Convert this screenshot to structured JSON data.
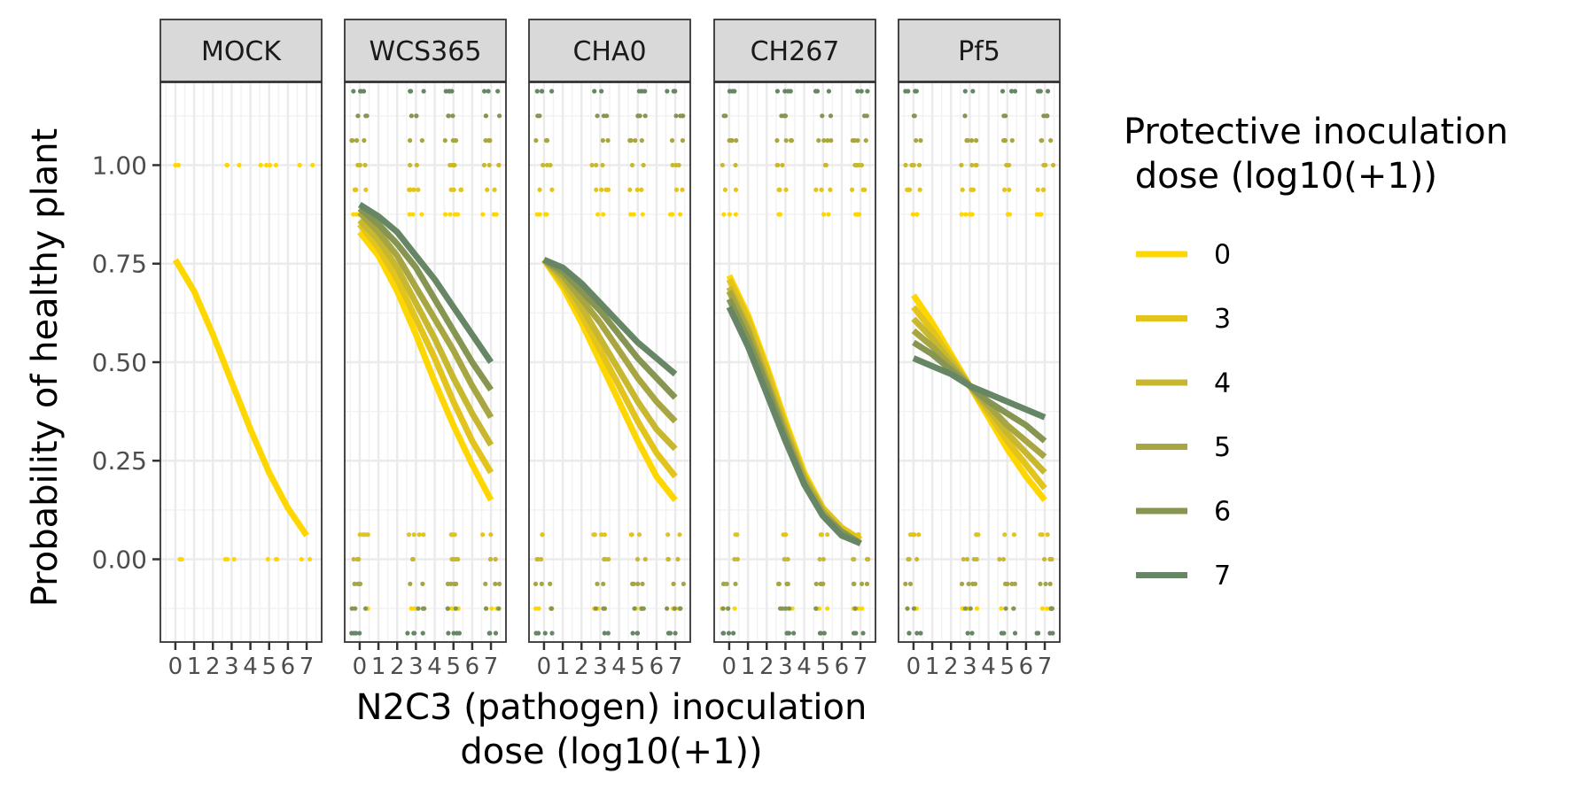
{
  "chart_data": {
    "type": "line",
    "facets": [
      "MOCK",
      "WCS365",
      "CHA0",
      "CH267",
      "Pf5"
    ],
    "xlabel": "N2C3 (pathogen) inoculation\ndose (log10(+1))",
    "ylabel": "Probability of healthy plant",
    "xlim": [
      -0.8,
      7.8
    ],
    "ylim": [
      -0.21,
      1.21
    ],
    "x_ticks": [
      0,
      1,
      2,
      3,
      4,
      5,
      6,
      7
    ],
    "x_tick_labels": [
      "0",
      "1",
      "2",
      "3",
      "4",
      "5",
      "6",
      "7"
    ],
    "y_ticks": [
      0,
      0.25,
      0.5,
      0.75,
      1
    ],
    "y_tick_labels": [
      "0.00",
      "0.25",
      "0.50",
      "0.75",
      "1.00"
    ],
    "legend": {
      "title": "Protective inoculation\n dose (log10(+1))",
      "position": "right",
      "entries": [
        {
          "label": "0",
          "color": "#FFD700"
        },
        {
          "label": "3",
          "color": "#E2C41C"
        },
        {
          "label": "4",
          "color": "#C8B830"
        },
        {
          "label": "5",
          "color": "#A8A642"
        },
        {
          "label": "6",
          "color": "#869652"
        },
        {
          "label": "7",
          "color": "#678665"
        }
      ]
    },
    "grid": true,
    "fitted_curves": [
      {
        "facet": "MOCK",
        "series": [
          {
            "name": "0",
            "x": [
              0,
              1,
              2,
              3,
              4,
              5,
              6,
              7
            ],
            "y": [
              0.76,
              0.68,
              0.57,
              0.45,
              0.33,
              0.22,
              0.13,
              0.06
            ]
          }
        ]
      },
      {
        "facet": "WCS365",
        "series": [
          {
            "name": "0",
            "x": [
              0,
              1,
              2,
              3,
              4,
              5,
              6,
              7
            ],
            "y": [
              0.83,
              0.77,
              0.68,
              0.57,
              0.45,
              0.34,
              0.24,
              0.15
            ]
          },
          {
            "name": "3",
            "x": [
              0,
              1,
              2,
              3,
              4,
              5,
              6,
              7
            ],
            "y": [
              0.85,
              0.79,
              0.71,
              0.61,
              0.51,
              0.4,
              0.3,
              0.22
            ]
          },
          {
            "name": "4",
            "x": [
              0,
              1,
              2,
              3,
              4,
              5,
              6,
              7
            ],
            "y": [
              0.86,
              0.81,
              0.74,
              0.65,
              0.56,
              0.46,
              0.37,
              0.29
            ]
          },
          {
            "name": "5",
            "x": [
              0,
              1,
              2,
              3,
              4,
              5,
              6,
              7
            ],
            "y": [
              0.88,
              0.83,
              0.77,
              0.69,
              0.61,
              0.53,
              0.44,
              0.36
            ]
          },
          {
            "name": "6",
            "x": [
              0,
              1,
              2,
              3,
              4,
              5,
              6,
              7
            ],
            "y": [
              0.89,
              0.85,
              0.8,
              0.74,
              0.66,
              0.58,
              0.5,
              0.43
            ]
          },
          {
            "name": "7",
            "x": [
              0,
              1,
              2,
              3,
              4,
              5,
              6,
              7
            ],
            "y": [
              0.9,
              0.87,
              0.83,
              0.77,
              0.71,
              0.64,
              0.57,
              0.5
            ]
          }
        ]
      },
      {
        "facet": "CHA0",
        "series": [
          {
            "name": "0",
            "x": [
              0,
              1,
              2,
              3,
              4,
              5,
              6,
              7
            ],
            "y": [
              0.76,
              0.69,
              0.6,
              0.5,
              0.4,
              0.3,
              0.21,
              0.15
            ]
          },
          {
            "name": "3",
            "x": [
              0,
              1,
              2,
              3,
              4,
              5,
              6,
              7
            ],
            "y": [
              0.76,
              0.7,
              0.62,
              0.53,
              0.44,
              0.35,
              0.27,
              0.21
            ]
          },
          {
            "name": "4",
            "x": [
              0,
              1,
              2,
              3,
              4,
              5,
              6,
              7
            ],
            "y": [
              0.76,
              0.71,
              0.64,
              0.56,
              0.48,
              0.4,
              0.33,
              0.28
            ]
          },
          {
            "name": "5",
            "x": [
              0,
              1,
              2,
              3,
              4,
              5,
              6,
              7
            ],
            "y": [
              0.76,
              0.72,
              0.66,
              0.6,
              0.53,
              0.46,
              0.4,
              0.35
            ]
          },
          {
            "name": "6",
            "x": [
              0,
              1,
              2,
              3,
              4,
              5,
              6,
              7
            ],
            "y": [
              0.76,
              0.73,
              0.68,
              0.63,
              0.57,
              0.51,
              0.46,
              0.41
            ]
          },
          {
            "name": "7",
            "x": [
              0,
              1,
              2,
              3,
              4,
              5,
              6,
              7
            ],
            "y": [
              0.76,
              0.74,
              0.7,
              0.65,
              0.6,
              0.55,
              0.51,
              0.47
            ]
          }
        ]
      },
      {
        "facet": "CH267",
        "series": [
          {
            "name": "0",
            "x": [
              0,
              1,
              2,
              3,
              4,
              5,
              6,
              7
            ],
            "y": [
              0.72,
              0.62,
              0.49,
              0.35,
              0.22,
              0.13,
              0.08,
              0.05
            ]
          },
          {
            "name": "3",
            "x": [
              0,
              1,
              2,
              3,
              4,
              5,
              6,
              7
            ],
            "y": [
              0.71,
              0.61,
              0.48,
              0.34,
              0.21,
              0.13,
              0.08,
              0.05
            ]
          },
          {
            "name": "4",
            "x": [
              0,
              1,
              2,
              3,
              4,
              5,
              6,
              7
            ],
            "y": [
              0.69,
              0.59,
              0.46,
              0.33,
              0.21,
              0.12,
              0.07,
              0.04
            ]
          },
          {
            "name": "5",
            "x": [
              0,
              1,
              2,
              3,
              4,
              5,
              6,
              7
            ],
            "y": [
              0.68,
              0.58,
              0.45,
              0.32,
              0.2,
              0.12,
              0.07,
              0.04
            ]
          },
          {
            "name": "6",
            "x": [
              0,
              1,
              2,
              3,
              4,
              5,
              6,
              7
            ],
            "y": [
              0.66,
              0.56,
              0.44,
              0.31,
              0.19,
              0.11,
              0.07,
              0.04
            ]
          },
          {
            "name": "7",
            "x": [
              0,
              1,
              2,
              3,
              4,
              5,
              6,
              7
            ],
            "y": [
              0.64,
              0.54,
              0.42,
              0.3,
              0.19,
              0.11,
              0.06,
              0.04
            ]
          }
        ]
      },
      {
        "facet": "Pf5",
        "series": [
          {
            "name": "0",
            "x": [
              0,
              1,
              2,
              3,
              4,
              5,
              6,
              7
            ],
            "y": [
              0.67,
              0.6,
              0.52,
              0.44,
              0.36,
              0.28,
              0.21,
              0.15
            ]
          },
          {
            "name": "3",
            "x": [
              0,
              1,
              2,
              3,
              4,
              5,
              6,
              7
            ],
            "y": [
              0.64,
              0.58,
              0.51,
              0.44,
              0.37,
              0.3,
              0.24,
              0.18
            ]
          },
          {
            "name": "4",
            "x": [
              0,
              1,
              2,
              3,
              4,
              5,
              6,
              7
            ],
            "y": [
              0.61,
              0.56,
              0.5,
              0.44,
              0.38,
              0.32,
              0.27,
              0.22
            ]
          },
          {
            "name": "5",
            "x": [
              0,
              1,
              2,
              3,
              4,
              5,
              6,
              7
            ],
            "y": [
              0.58,
              0.54,
              0.49,
              0.44,
              0.39,
              0.34,
              0.3,
              0.26
            ]
          },
          {
            "name": "6",
            "x": [
              0,
              1,
              2,
              3,
              4,
              5,
              6,
              7
            ],
            "y": [
              0.55,
              0.52,
              0.48,
              0.44,
              0.4,
              0.37,
              0.34,
              0.3
            ]
          },
          {
            "name": "7",
            "x": [
              0,
              1,
              2,
              3,
              4,
              5,
              6,
              7
            ],
            "y": [
              0.51,
              0.49,
              0.47,
              0.44,
              0.42,
              0.4,
              0.38,
              0.36
            ]
          }
        ]
      }
    ],
    "observations": {
      "note": "jittered binary outcomes; healthy = 1, diseased = 0",
      "points": [
        {
          "facet": "MOCK",
          "series": "0",
          "x": [
            0,
            3,
            5,
            7
          ],
          "healthy": [
            1,
            1,
            1,
            1
          ],
          "diseased": [
            1,
            1,
            1,
            1
          ]
        },
        {
          "facet": "WCS365",
          "series": "all",
          "x": [
            0,
            3,
            5,
            7
          ],
          "healthy": [
            1,
            1,
            1,
            1
          ],
          "diseased": [
            1,
            1,
            1,
            1
          ]
        },
        {
          "facet": "CHA0",
          "series": "all",
          "x": [
            0,
            3,
            5,
            7
          ],
          "healthy": [
            1,
            1,
            1,
            1
          ],
          "diseased": [
            1,
            1,
            1,
            1
          ]
        },
        {
          "facet": "CH267",
          "series": "all",
          "x": [
            0,
            3,
            5,
            7
          ],
          "healthy": [
            1,
            1,
            1,
            1
          ],
          "diseased": [
            1,
            1,
            1,
            1
          ]
        },
        {
          "facet": "Pf5",
          "series": "all",
          "x": [
            0,
            3,
            5,
            7
          ],
          "healthy": [
            1,
            1,
            1,
            1
          ],
          "diseased": [
            1,
            1,
            1,
            1
          ]
        }
      ]
    }
  }
}
